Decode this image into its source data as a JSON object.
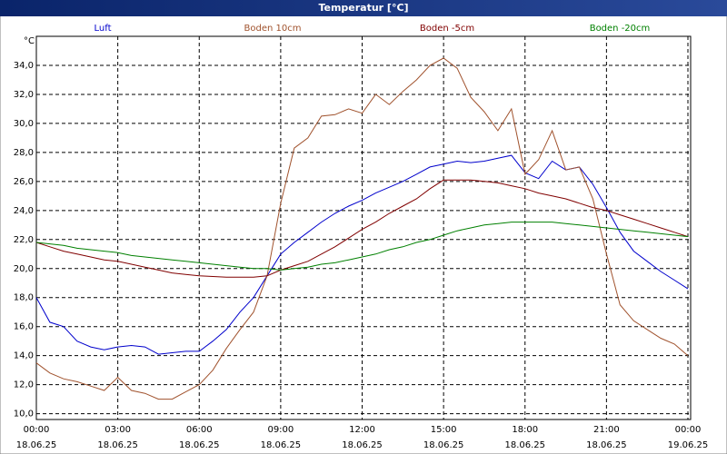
{
  "chart_data": {
    "type": "line",
    "title": "Temperatur [°C]",
    "y_label": "°C",
    "x": [
      0,
      0.5,
      1,
      1.5,
      2,
      2.5,
      3,
      3.5,
      4,
      4.5,
      5,
      5.5,
      6,
      6.5,
      7,
      7.5,
      8,
      8.5,
      9,
      9.5,
      10,
      10.5,
      11,
      11.5,
      12,
      12.5,
      13,
      13.5,
      14,
      14.5,
      15,
      15.5,
      16,
      16.5,
      17,
      17.5,
      18,
      18.5,
      19,
      19.5,
      20,
      20.5,
      21,
      21.5,
      22,
      22.5,
      23,
      23.5,
      24
    ],
    "xlim": [
      0,
      24
    ],
    "xticks": [
      {
        "value": 0,
        "label": "00:00",
        "date": "18.06.25"
      },
      {
        "value": 3,
        "label": "03:00",
        "date": "18.06.25"
      },
      {
        "value": 6,
        "label": "06:00",
        "date": "18.06.25"
      },
      {
        "value": 9,
        "label": "09:00",
        "date": "18.06.25"
      },
      {
        "value": 12,
        "label": "12:00",
        "date": "18.06.25"
      },
      {
        "value": 15,
        "label": "15:00",
        "date": "18.06.25"
      },
      {
        "value": 18,
        "label": "18:00",
        "date": "18.06.25"
      },
      {
        "value": 21,
        "label": "21:00",
        "date": "18.06.25"
      },
      {
        "value": 24,
        "label": "00:00",
        "date": "19.06.25"
      }
    ],
    "ylim": [
      9.6,
      36
    ],
    "yticks": [
      {
        "value": 10,
        "label": "10,0"
      },
      {
        "value": 12,
        "label": "12,0"
      },
      {
        "value": 14,
        "label": "14,0"
      },
      {
        "value": 16,
        "label": "16,0"
      },
      {
        "value": 18,
        "label": "18,0"
      },
      {
        "value": 20,
        "label": "20,0"
      },
      {
        "value": 22,
        "label": "22,0"
      },
      {
        "value": 24,
        "label": "24,0"
      },
      {
        "value": 26,
        "label": "26,0"
      },
      {
        "value": 28,
        "label": "28,0"
      },
      {
        "value": 30,
        "label": "30,0"
      },
      {
        "value": 32,
        "label": "32,0"
      },
      {
        "value": 34,
        "label": "34,0"
      }
    ],
    "grid": true,
    "series": [
      {
        "name": "Luft",
        "color": "#0000cc",
        "values": [
          18.0,
          16.3,
          16.0,
          15.0,
          14.6,
          14.4,
          14.6,
          14.7,
          14.6,
          14.1,
          14.2,
          14.3,
          14.3,
          15.0,
          15.8,
          17.0,
          18.0,
          19.5,
          21.0,
          21.8,
          22.5,
          23.2,
          23.8,
          24.3,
          24.7,
          25.2,
          25.6,
          26.0,
          26.5,
          27.0,
          27.2,
          27.4,
          27.3,
          27.4,
          27.6,
          27.8,
          26.6,
          26.2,
          27.4,
          26.8,
          27.0,
          25.8,
          24.2,
          22.5,
          21.2,
          20.5,
          19.8,
          19.2,
          18.6
        ]
      },
      {
        "name": "Boden 10cm",
        "color": "#a0522d",
        "values": [
          13.5,
          12.8,
          12.4,
          12.2,
          11.9,
          11.6,
          12.5,
          11.6,
          11.4,
          11.0,
          11.0,
          11.5,
          12.0,
          13.0,
          14.5,
          15.8,
          17.0,
          19.5,
          24.5,
          28.3,
          29.0,
          30.5,
          30.6,
          31.0,
          30.7,
          32.0,
          31.3,
          32.2,
          33.0,
          34.0,
          34.5,
          33.8,
          31.8,
          30.8,
          29.5,
          31.0,
          26.5,
          27.5,
          29.5,
          26.8,
          27.0,
          24.8,
          21.0,
          17.5,
          16.4,
          15.8,
          15.2,
          14.8,
          14.0
        ]
      },
      {
        "name": "Boden -5cm",
        "color": "#800000",
        "values": [
          21.8,
          21.5,
          21.2,
          21.0,
          20.8,
          20.6,
          20.5,
          20.3,
          20.1,
          19.9,
          19.7,
          19.6,
          19.5,
          19.45,
          19.4,
          19.4,
          19.4,
          19.5,
          19.9,
          20.2,
          20.5,
          21.0,
          21.5,
          22.1,
          22.7,
          23.2,
          23.8,
          24.3,
          24.8,
          25.5,
          26.1,
          26.1,
          26.1,
          26.0,
          25.9,
          25.7,
          25.5,
          25.2,
          25.0,
          24.8,
          24.5,
          24.2,
          24.0,
          23.7,
          23.4,
          23.1,
          22.8,
          22.5,
          22.2
        ]
      },
      {
        "name": "Boden -20cm",
        "color": "#008000",
        "values": [
          21.8,
          21.7,
          21.6,
          21.4,
          21.3,
          21.2,
          21.1,
          20.9,
          20.8,
          20.7,
          20.6,
          20.5,
          20.4,
          20.3,
          20.2,
          20.1,
          20.0,
          20.0,
          19.9,
          20.0,
          20.1,
          20.3,
          20.4,
          20.6,
          20.8,
          21.0,
          21.3,
          21.5,
          21.8,
          22.0,
          22.3,
          22.6,
          22.8,
          23.0,
          23.1,
          23.2,
          23.2,
          23.2,
          23.2,
          23.1,
          23.0,
          22.9,
          22.8,
          22.7,
          22.6,
          22.5,
          22.4,
          22.3,
          22.2
        ]
      }
    ]
  }
}
